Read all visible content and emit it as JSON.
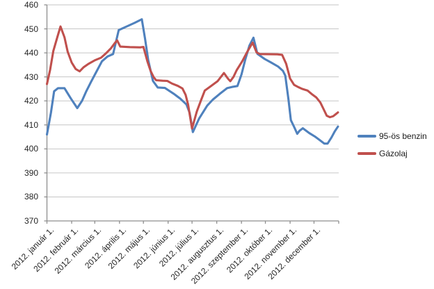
{
  "chart_data": {
    "type": "line",
    "title": "",
    "legend_position": "right",
    "y_axis": {
      "min": 370,
      "max": 460,
      "step": 10,
      "tick_labels": [
        "370",
        "380",
        "390",
        "400",
        "410",
        "420",
        "430",
        "440",
        "450",
        "460"
      ]
    },
    "x_axis": {
      "tick_labels": [
        "2012. január 1.",
        "2012. február 1.",
        "2012. március 1.",
        "2012. április 1.",
        "2012. május 1.",
        "2012. június 1.",
        "2012. július 1.",
        "2012. augusztus 1.",
        "2012. szeptember 1.",
        "2012. október 1.",
        "2012. november 1.",
        "2012. december 1."
      ],
      "tick_days": [
        1,
        32,
        61,
        92,
        122,
        153,
        183,
        214,
        245,
        275,
        306,
        336
      ],
      "domain_days": [
        1,
        367
      ],
      "edge_tick": true
    },
    "colors": {
      "grid": "#C6C6C6",
      "axis": "#8E8E8E",
      "tick_text": "#262626"
    },
    "series": [
      {
        "name": "95-ös benzin",
        "color": "#4F81BD",
        "points": [
          [
            1,
            406
          ],
          [
            6,
            415
          ],
          [
            10,
            424
          ],
          [
            15,
            425.3
          ],
          [
            23,
            425.3
          ],
          [
            31,
            421
          ],
          [
            39,
            417
          ],
          [
            45,
            420
          ],
          [
            50,
            423.8
          ],
          [
            56,
            427.7
          ],
          [
            62,
            431.5
          ],
          [
            70,
            436.5
          ],
          [
            77,
            438.5
          ],
          [
            84,
            439.5
          ],
          [
            91,
            449.5
          ],
          [
            101,
            451
          ],
          [
            111,
            452.5
          ],
          [
            120,
            454
          ],
          [
            124,
            446
          ],
          [
            128,
            437
          ],
          [
            134,
            428.3
          ],
          [
            140,
            425.6
          ],
          [
            149,
            425.4
          ],
          [
            160,
            423
          ],
          [
            168,
            421
          ],
          [
            176,
            418.5
          ],
          [
            180,
            415
          ],
          [
            184,
            407
          ],
          [
            192,
            412.7
          ],
          [
            202,
            418
          ],
          [
            209,
            420.5
          ],
          [
            218,
            423
          ],
          [
            227,
            425.3
          ],
          [
            233,
            425.8
          ],
          [
            240,
            426.2
          ],
          [
            245,
            431
          ],
          [
            250,
            437.5
          ],
          [
            255,
            443
          ],
          [
            260,
            446.3
          ],
          [
            265,
            439.6
          ],
          [
            274,
            437.5
          ],
          [
            282,
            436
          ],
          [
            291,
            434.3
          ],
          [
            297,
            432.5
          ],
          [
            300,
            430.5
          ],
          [
            304,
            420.5
          ],
          [
            307,
            412
          ],
          [
            311,
            409.2
          ],
          [
            315,
            406.3
          ],
          [
            318,
            407.6
          ],
          [
            322,
            408.6
          ],
          [
            330,
            406.6
          ],
          [
            337,
            405.2
          ],
          [
            343,
            403.7
          ],
          [
            349,
            402.2
          ],
          [
            353,
            402.2
          ],
          [
            358,
            404.8
          ],
          [
            362,
            407.3
          ],
          [
            366,
            409.3
          ]
        ]
      },
      {
        "name": "Gázolaj",
        "color": "#C0504D",
        "points": [
          [
            1,
            427
          ],
          [
            5,
            433
          ],
          [
            9,
            440.8
          ],
          [
            14,
            446.5
          ],
          [
            18,
            451
          ],
          [
            23,
            446.5
          ],
          [
            27,
            440.5
          ],
          [
            32,
            436
          ],
          [
            37,
            433.3
          ],
          [
            42,
            432.3
          ],
          [
            47,
            434
          ],
          [
            53,
            435.4
          ],
          [
            61,
            436.9
          ],
          [
            69,
            438
          ],
          [
            75,
            439.8
          ],
          [
            81,
            441.8
          ],
          [
            86,
            444
          ],
          [
            89,
            445.2
          ],
          [
            93,
            442.6
          ],
          [
            105,
            442.4
          ],
          [
            118,
            442.3
          ],
          [
            122,
            442.5
          ],
          [
            127,
            436.5
          ],
          [
            131,
            432.5
          ],
          [
            135,
            429.8
          ],
          [
            138,
            428.6
          ],
          [
            146,
            428.4
          ],
          [
            152,
            428.3
          ],
          [
            158,
            427.2
          ],
          [
            165,
            426.3
          ],
          [
            171,
            425.2
          ],
          [
            175,
            422.5
          ],
          [
            178,
            418.5
          ],
          [
            183,
            408.5
          ],
          [
            189,
            415.6
          ],
          [
            194,
            420
          ],
          [
            199,
            424.3
          ],
          [
            206,
            426
          ],
          [
            215,
            428.2
          ],
          [
            223,
            431.6
          ],
          [
            228,
            429.3
          ],
          [
            231,
            428.2
          ],
          [
            235,
            430
          ],
          [
            239,
            432.8
          ],
          [
            246,
            436.5
          ],
          [
            252,
            440.3
          ],
          [
            259,
            444.3
          ],
          [
            264,
            440.2
          ],
          [
            268,
            439.5
          ],
          [
            290,
            439.4
          ],
          [
            296,
            439.2
          ],
          [
            301,
            435.5
          ],
          [
            306,
            429.3
          ],
          [
            311,
            426.7
          ],
          [
            316,
            425.8
          ],
          [
            321,
            425
          ],
          [
            328,
            424.3
          ],
          [
            333,
            422.9
          ],
          [
            339,
            421.4
          ],
          [
            344,
            419.3
          ],
          [
            348,
            416.6
          ],
          [
            352,
            413.8
          ],
          [
            356,
            413.2
          ],
          [
            360,
            413.6
          ],
          [
            363,
            414.4
          ],
          [
            366,
            415.2
          ]
        ]
      }
    ]
  }
}
